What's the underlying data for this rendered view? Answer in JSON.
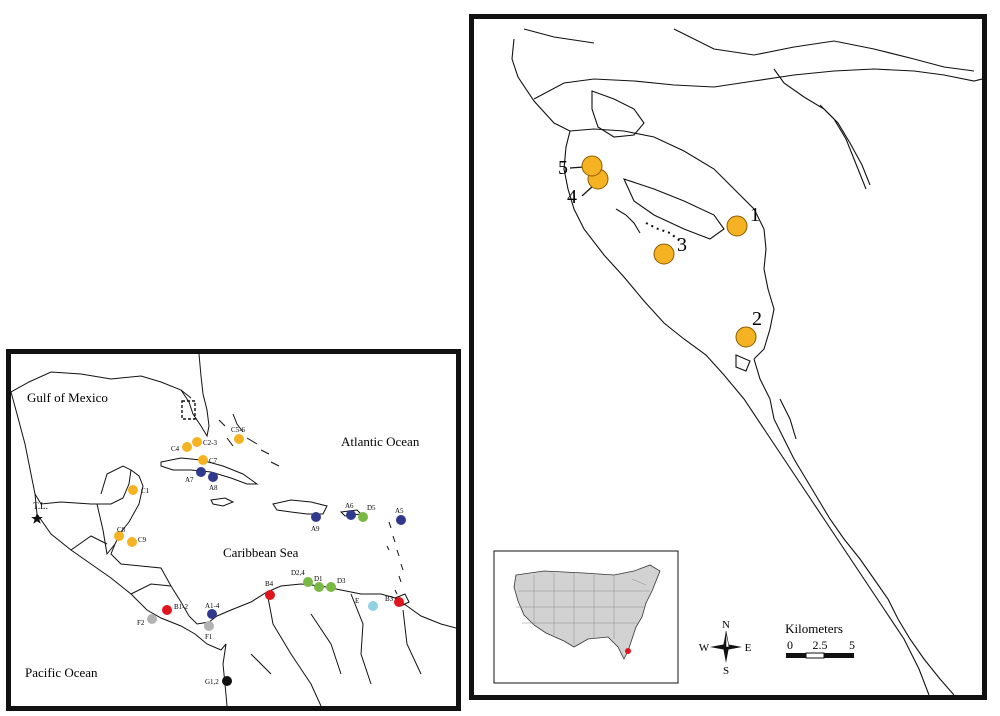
{
  "regional_map": {
    "water_labels": {
      "gulf": "Gulf of Mexico",
      "atlantic": "Atlantic Ocean",
      "caribbean": "Caribbean Sea",
      "pacific": "Pacific Ocean"
    },
    "sites": [
      {
        "label": "C4",
        "color": "#f5b324"
      },
      {
        "label": "C2-3",
        "color": "#f5b324"
      },
      {
        "label": "C5-6",
        "color": "#f5b324"
      },
      {
        "label": "C7",
        "color": "#f5b324"
      },
      {
        "label": "C1",
        "color": "#f5b324"
      },
      {
        "label": "C8",
        "color": "#f5b324"
      },
      {
        "label": "C9",
        "color": "#f5b324"
      },
      {
        "label": "A7",
        "color": "#2f3a8f"
      },
      {
        "label": "A8",
        "color": "#2f3a8f"
      },
      {
        "label": "A9",
        "color": "#2f3a8f"
      },
      {
        "label": "A6",
        "color": "#2f3a8f"
      },
      {
        "label": "A5",
        "color": "#2f3a8f"
      },
      {
        "label": "A1-4",
        "color": "#2f3a8f"
      },
      {
        "label": "D5",
        "color": "#78b843"
      },
      {
        "label": "D2,4",
        "color": "#78b843"
      },
      {
        "label": "D1",
        "color": "#78b843"
      },
      {
        "label": "D3",
        "color": "#78b843"
      },
      {
        "label": "B4",
        "color": "#e0161f"
      },
      {
        "label": "B1-2",
        "color": "#e0161f"
      },
      {
        "label": "B3",
        "color": "#e0161f"
      },
      {
        "label": "E",
        "color": "#8fd3e0"
      },
      {
        "label": "F2",
        "color": "#b3b3b3"
      },
      {
        "label": "F1",
        "color": "#b3b3b3"
      },
      {
        "label": "G1,2",
        "color": "#111111"
      }
    ],
    "tl_label": "T.L."
  },
  "detail_map": {
    "sites": [
      {
        "label": "1",
        "color": "#f5b324"
      },
      {
        "label": "2",
        "color": "#f5b324"
      },
      {
        "label": "3",
        "color": "#f5b324"
      },
      {
        "label": "4",
        "color": "#f5b324"
      },
      {
        "label": "5",
        "color": "#f5b324"
      }
    ],
    "compass": {
      "n": "N",
      "s": "S",
      "e": "E",
      "w": "W"
    },
    "scale": {
      "title": "Kilometers",
      "ticks": [
        "0",
        "2.5",
        "5"
      ]
    }
  }
}
